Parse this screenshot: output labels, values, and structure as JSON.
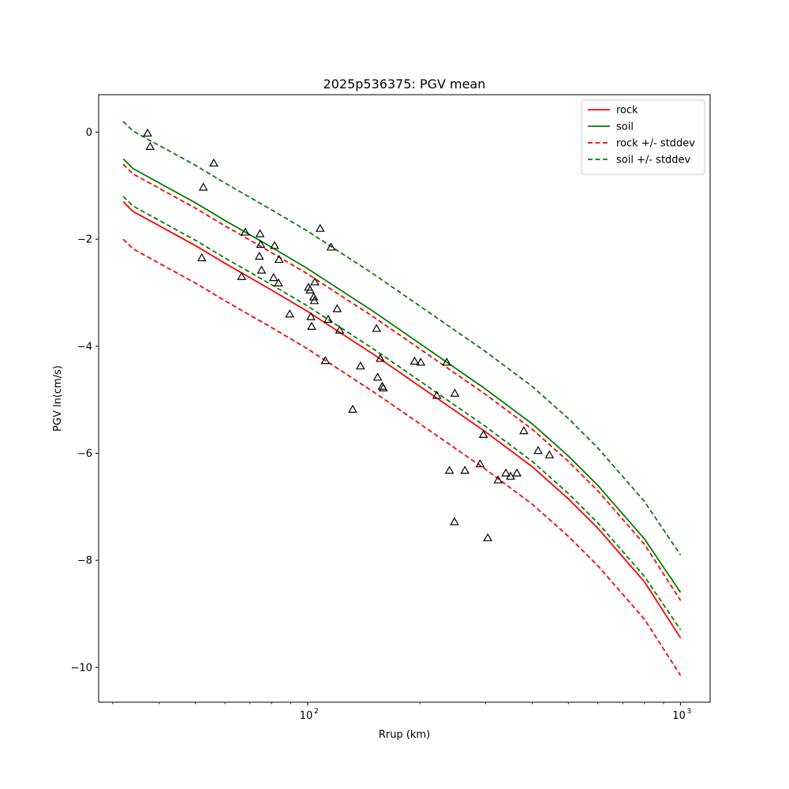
{
  "chart_data": {
    "type": "line",
    "title": "2025p536375: PGV mean",
    "xlabel": "Rrup (km)",
    "ylabel": "PGV ln(cm/s)",
    "xscale": "log",
    "xlim": [
      27.5,
      1200
    ],
    "ylim": [
      -10.65,
      0.7
    ],
    "yticks": [
      0,
      -2,
      -4,
      -6,
      -8,
      -10
    ],
    "ytick_labels": [
      "0",
      "−2",
      "−4",
      "−6",
      "−8",
      "−10"
    ],
    "xticks": [
      100,
      1000
    ],
    "xtick_labels": [
      "10",
      "10"
    ],
    "xtick_exponents": [
      "2",
      "3"
    ],
    "grid": false,
    "legend_position": "top-right",
    "series": [
      {
        "name": "rock",
        "color": "#ff0000",
        "dash": "solid",
        "x": [
          32,
          34,
          40,
          50,
          60,
          80,
          100,
          150,
          200,
          300,
          400,
          500,
          600,
          800,
          1000
        ],
        "y": [
          -1.3,
          -1.48,
          -1.75,
          -2.12,
          -2.45,
          -2.95,
          -3.35,
          -4.15,
          -4.75,
          -5.6,
          -6.25,
          -6.85,
          -7.4,
          -8.4,
          -9.45
        ]
      },
      {
        "name": "soil",
        "color": "#008000",
        "dash": "solid",
        "x": [
          32,
          34,
          40,
          50,
          60,
          80,
          100,
          150,
          200,
          300,
          400,
          500,
          600,
          800,
          1000
        ],
        "y": [
          -0.5,
          -0.68,
          -0.95,
          -1.32,
          -1.65,
          -2.15,
          -2.55,
          -3.35,
          -3.95,
          -4.8,
          -5.45,
          -6.05,
          -6.6,
          -7.6,
          -8.6
        ]
      },
      {
        "name": "rock +/- stddev",
        "color": "#ff0000",
        "dash": "dashed",
        "x": [
          32,
          34,
          40,
          50,
          60,
          80,
          100,
          150,
          200,
          300,
          400,
          500,
          600,
          800,
          1000
        ],
        "y": [
          -0.6,
          -0.78,
          -1.05,
          -1.42,
          -1.75,
          -2.25,
          -2.65,
          -3.45,
          -4.05,
          -4.9,
          -5.55,
          -6.15,
          -6.7,
          -7.7,
          -8.75
        ]
      },
      {
        "name": "",
        "color": "#ff0000",
        "dash": "dashed",
        "x": [
          32,
          34,
          40,
          50,
          60,
          80,
          100,
          150,
          200,
          300,
          400,
          500,
          600,
          800,
          1000
        ],
        "y": [
          -2.0,
          -2.18,
          -2.45,
          -2.82,
          -3.15,
          -3.65,
          -4.05,
          -4.85,
          -5.45,
          -6.3,
          -6.95,
          -7.55,
          -8.1,
          -9.1,
          -10.15
        ]
      },
      {
        "name": "soil +/- stddev",
        "color": "#008000",
        "dash": "dashed",
        "x": [
          32,
          34,
          40,
          50,
          60,
          80,
          100,
          150,
          200,
          300,
          400,
          500,
          600,
          800,
          1000
        ],
        "y": [
          0.2,
          0.02,
          -0.25,
          -0.62,
          -0.95,
          -1.45,
          -1.85,
          -2.65,
          -3.25,
          -4.1,
          -4.75,
          -5.35,
          -5.9,
          -6.9,
          -7.9
        ]
      },
      {
        "name": "",
        "color": "#008000",
        "dash": "dashed",
        "x": [
          32,
          34,
          40,
          50,
          60,
          80,
          100,
          150,
          200,
          300,
          400,
          500,
          600,
          800,
          1000
        ],
        "y": [
          -1.2,
          -1.38,
          -1.65,
          -2.02,
          -2.35,
          -2.85,
          -3.25,
          -4.05,
          -4.65,
          -5.5,
          -6.15,
          -6.75,
          -7.3,
          -8.3,
          -9.3
        ]
      }
    ],
    "observations": {
      "marker": "triangle",
      "color": "#000000",
      "points": [
        {
          "x": 37.2,
          "y": -0.02
        },
        {
          "x": 37.8,
          "y": -0.27
        },
        {
          "x": 56.0,
          "y": -0.58
        },
        {
          "x": 52.5,
          "y": -1.03
        },
        {
          "x": 52.0,
          "y": -2.35
        },
        {
          "x": 66.5,
          "y": -2.7
        },
        {
          "x": 68.0,
          "y": -1.87
        },
        {
          "x": 74.5,
          "y": -1.9
        },
        {
          "x": 74.8,
          "y": -2.1
        },
        {
          "x": 74.2,
          "y": -2.32
        },
        {
          "x": 75.2,
          "y": -2.58
        },
        {
          "x": 81.5,
          "y": -2.12
        },
        {
          "x": 81.0,
          "y": -2.72
        },
        {
          "x": 83.8,
          "y": -2.38
        },
        {
          "x": 83.5,
          "y": -2.82
        },
        {
          "x": 89.5,
          "y": -3.4
        },
        {
          "x": 100.5,
          "y": -2.9
        },
        {
          "x": 101.5,
          "y": -2.95
        },
        {
          "x": 104.5,
          "y": -2.8
        },
        {
          "x": 103.8,
          "y": -3.08
        },
        {
          "x": 104.2,
          "y": -3.15
        },
        {
          "x": 102.0,
          "y": -3.45
        },
        {
          "x": 102.5,
          "y": -3.63
        },
        {
          "x": 108.0,
          "y": -1.8
        },
        {
          "x": 111.5,
          "y": -4.27
        },
        {
          "x": 113.5,
          "y": -3.5
        },
        {
          "x": 115.5,
          "y": -2.15
        },
        {
          "x": 120.0,
          "y": -3.3
        },
        {
          "x": 121.8,
          "y": -3.7
        },
        {
          "x": 132.0,
          "y": -5.18
        },
        {
          "x": 138.5,
          "y": -4.37
        },
        {
          "x": 153.0,
          "y": -3.67
        },
        {
          "x": 154.0,
          "y": -4.58
        },
        {
          "x": 156.5,
          "y": -4.23
        },
        {
          "x": 158.5,
          "y": -4.75
        },
        {
          "x": 159.5,
          "y": -4.78
        },
        {
          "x": 193.5,
          "y": -4.28
        },
        {
          "x": 201.0,
          "y": -4.3
        },
        {
          "x": 222.0,
          "y": -4.92
        },
        {
          "x": 236.0,
          "y": -4.3
        },
        {
          "x": 240.0,
          "y": -6.32
        },
        {
          "x": 248.0,
          "y": -4.88
        },
        {
          "x": 247.5,
          "y": -7.28
        },
        {
          "x": 264.0,
          "y": -6.32
        },
        {
          "x": 290.0,
          "y": -6.2
        },
        {
          "x": 296.0,
          "y": -5.65
        },
        {
          "x": 304.0,
          "y": -7.58
        },
        {
          "x": 324.0,
          "y": -6.5
        },
        {
          "x": 340.0,
          "y": -6.37
        },
        {
          "x": 350.0,
          "y": -6.43
        },
        {
          "x": 364.0,
          "y": -6.37
        },
        {
          "x": 380.0,
          "y": -5.58
        },
        {
          "x": 415.0,
          "y": -5.95
        },
        {
          "x": 445.0,
          "y": -6.03
        }
      ]
    }
  }
}
